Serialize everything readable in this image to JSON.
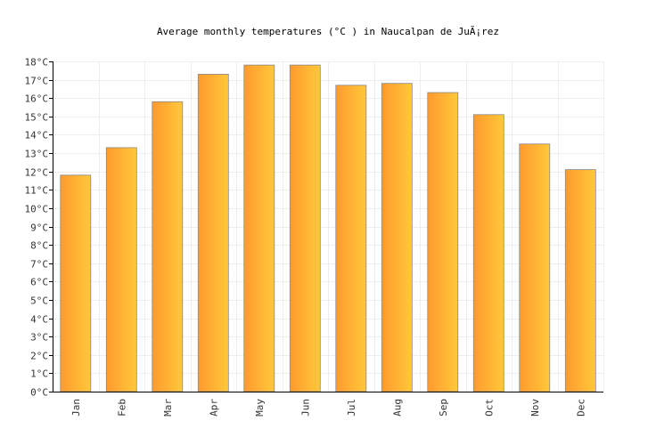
{
  "chart_data": {
    "type": "bar",
    "title": "Average monthly temperatures (°C ) in Naucalpan de JuÃ¡rez",
    "xlabel": "",
    "ylabel": "",
    "categories": [
      "Jan",
      "Feb",
      "Mar",
      "Apr",
      "May",
      "Jun",
      "Jul",
      "Aug",
      "Sep",
      "Oct",
      "Nov",
      "Dec"
    ],
    "values": [
      11.8,
      13.3,
      15.8,
      17.3,
      17.8,
      17.8,
      16.7,
      16.8,
      16.3,
      15.1,
      13.5,
      12.1
    ],
    "ylim": [
      0,
      18
    ],
    "y_tick_step": 1,
    "y_tick_suffix": "°C",
    "grid": true,
    "legend": "none",
    "colors": {
      "bar_left": "#ff9a2e",
      "bar_right": "#ffc83a",
      "bar_stroke": "#888888",
      "grid": "#eeeeee",
      "axis": "#000000"
    }
  }
}
